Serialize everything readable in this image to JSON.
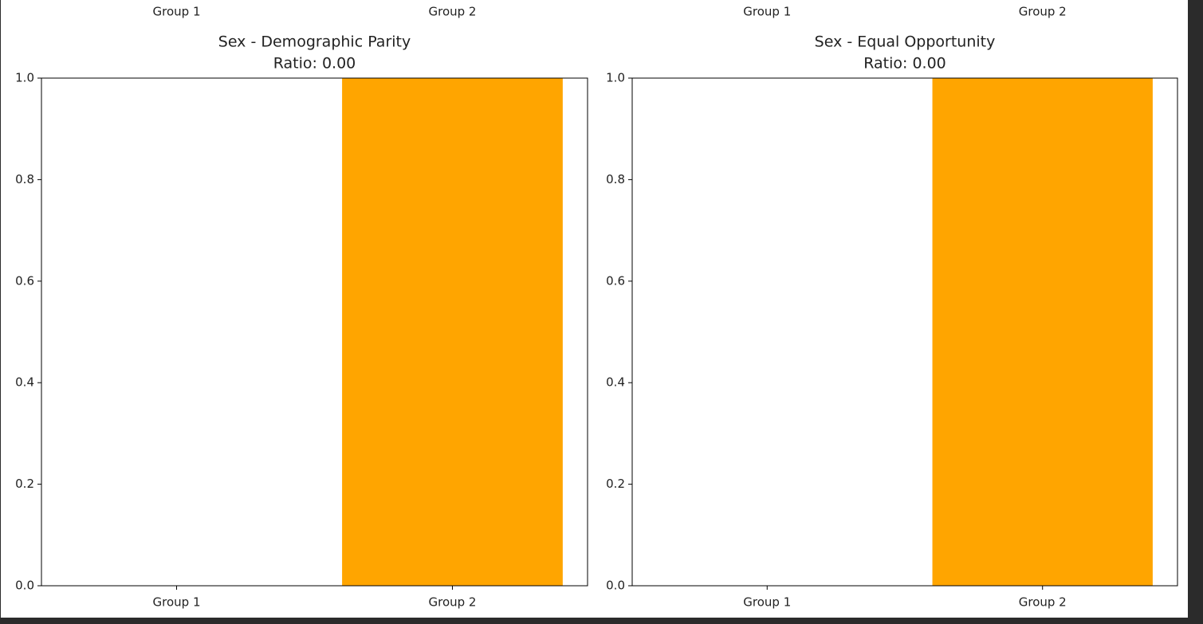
{
  "cropped_row": [
    {
      "categories": [
        "Group 1",
        "Group 2"
      ]
    },
    {
      "categories": [
        "Group 1",
        "Group 2"
      ]
    }
  ],
  "chart_data": [
    {
      "type": "bar",
      "title": "Sex - Demographic Parity",
      "subtitle": "Ratio: 0.00",
      "categories": [
        "Group 1",
        "Group 2"
      ],
      "values": [
        0,
        1.0
      ],
      "color": "#ffa500",
      "ylim": [
        0,
        1.0
      ],
      "yticks": [
        {
          "value": 0,
          "label": "0.0"
        },
        0.2,
        0.4,
        0.6,
        0.8,
        {
          "value": 1,
          "label": "1.0"
        }
      ]
    },
    {
      "type": "bar",
      "title": "Sex - Equal Opportunity",
      "subtitle": "Ratio: 0.00",
      "categories": [
        "Group 1",
        "Group 2"
      ],
      "values": [
        0,
        1.0
      ],
      "color": "#ffa500",
      "ylim": [
        0,
        1.0
      ],
      "yticks": [
        {
          "value": 0,
          "label": "0.0"
        },
        0.2,
        0.4,
        0.6,
        0.8,
        {
          "value": 1,
          "label": "1.0"
        }
      ]
    }
  ]
}
